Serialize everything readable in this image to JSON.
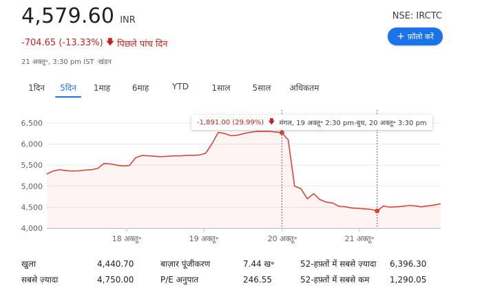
{
  "quote": {
    "price": "4,579.60",
    "currency": "INR",
    "change": "-704.65 (-13.33%)",
    "period": "पिछले पांच दिन",
    "timestamp": "21 अक्तू॰, 3:30 pm IST ·खंडन"
  },
  "ticker": "NSE: IRCTC",
  "follow_button": {
    "label": "फ़ॉलो करें",
    "icon": "plus-icon"
  },
  "tabs": [
    {
      "label": "1दिन",
      "active": false
    },
    {
      "label": "5दिन",
      "active": true
    },
    {
      "label": "1माह",
      "active": false
    },
    {
      "label": "6माह",
      "active": false
    },
    {
      "label": "YTD",
      "active": false
    },
    {
      "label": "1साल",
      "active": false
    },
    {
      "label": "5साल",
      "active": false
    },
    {
      "label": "अधिकतम",
      "active": false
    }
  ],
  "tooltip": {
    "change": "-1,891.00 (29.99%)",
    "range": "मंगल, 19 अक्तू॰ 2:30 pm-बुध, 20 अक्तू॰ 3:30 pm"
  },
  "colors": {
    "line": "#db4437",
    "accent": "#1a73e8",
    "negative": "#c5221f"
  },
  "chart_data": {
    "type": "line",
    "yticks": [
      "6,500",
      "6,000",
      "5,500",
      "5,000",
      "4,500",
      "4,000"
    ],
    "ylim": [
      4000,
      6500
    ],
    "xticks": [
      "18 अक्तू॰",
      "19 अक्तू॰",
      "20 अक्तू॰",
      "21 अक्तू॰"
    ],
    "grid": true,
    "series": [
      {
        "values": [
          5290,
          5360,
          5390,
          5370,
          5360,
          5365,
          5380,
          5390,
          5420,
          5540,
          5530,
          5500,
          5480,
          5490,
          5680,
          5730,
          5720,
          5710,
          5700,
          5710,
          5720,
          5720,
          5730,
          5730,
          5740,
          5780,
          6010,
          6280,
          6250,
          6200,
          6210,
          6250,
          6280,
          6300,
          6300,
          6300,
          6290,
          6270,
          6100,
          5000,
          4940,
          4700,
          4820,
          4680,
          4620,
          4600,
          4520,
          4510,
          4480,
          4470,
          4460,
          4450,
          4410,
          4530,
          4500,
          4510,
          4520,
          4540,
          4530,
          4510,
          4530,
          4550,
          4580
        ]
      }
    ]
  },
  "stats": [
    [
      {
        "label": "खुला",
        "value": "4,440.70"
      },
      {
        "label": "बाज़ार पूंजीकरण",
        "value": "7.44 ख॰"
      },
      {
        "label": "52-हफ़्तों में सबसे ज़्यादा",
        "value": "6,396.30"
      }
    ],
    [
      {
        "label": "सबसे ज़्यादा",
        "value": "4,750.00"
      },
      {
        "label": "P/E अनुपात",
        "value": "246.55"
      },
      {
        "label": "52-हफ़्तों में सबसे कम",
        "value": "1,290.05"
      }
    ]
  ]
}
